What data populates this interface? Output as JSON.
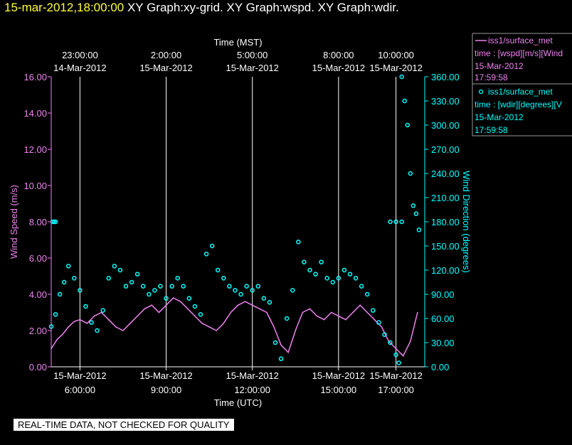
{
  "header": {
    "timestamp": "15-mar-2012,18:00:00",
    "graphs": "XY Graph:xy-grid.  XY Graph:wspd.  XY Graph:wdir."
  },
  "colors": {
    "wspd": "#ee82ee",
    "wdir": "#00ffff",
    "grid": "#ffffff",
    "timestamp": "#ffff33"
  },
  "legend": {
    "wspd": {
      "line1": "iss1/surface_met",
      "line2": "time : [wspd][m/s][Wind",
      "line3": "15-Mar-2012",
      "line4": "17:59:58",
      "marker": "line"
    },
    "wdir": {
      "line1": "iss1/surface_met",
      "line2": "time : [wdir][degrees][V",
      "line3": "15-Mar-2012",
      "line4": "17:59:58",
      "marker": "circle"
    }
  },
  "notice": "REAL-TIME DATA, NOT CHECKED FOR QUALITY",
  "chart_data": {
    "type": "line",
    "x_unit": "hours UTC, 15-Mar-2012",
    "xlim": [
      5.0,
      18.0
    ],
    "top_axis": {
      "label": "Time (MST)",
      "ticks": [
        {
          "x": 6,
          "time": "23:00:00",
          "date": "14-Mar-2012"
        },
        {
          "x": 9,
          "time": "2:00:00",
          "date": "15-Mar-2012"
        },
        {
          "x": 12,
          "time": "5:00:00",
          "date": "15-Mar-2012"
        },
        {
          "x": 15,
          "time": "8:00:00",
          "date": "15-Mar-2012"
        },
        {
          "x": 17,
          "time": "10:00:00",
          "date": "15-Mar-2012"
        }
      ]
    },
    "bottom_axis": {
      "label": "Time (UTC)",
      "ticks": [
        {
          "x": 6,
          "date": "15-Mar-2012",
          "time": "6:00:00"
        },
        {
          "x": 9,
          "date": "15-Mar-2012",
          "time": "9:00:00"
        },
        {
          "x": 12,
          "date": "15-Mar-2012",
          "time": "12:00:00"
        },
        {
          "x": 15,
          "date": "15-Mar-2012",
          "time": "15:00:00"
        },
        {
          "x": 17,
          "date": "15-Mar-2012",
          "time": "17:00:00"
        }
      ]
    },
    "y_left": {
      "label": "Wind Speed (m/s)",
      "ylim": [
        0,
        16
      ],
      "ticks": [
        "0.00",
        "2.00",
        "4.00",
        "6.00",
        "8.00",
        "10.00",
        "12.00",
        "14.00",
        "16.00"
      ]
    },
    "y_right": {
      "label": "Wind Direction (degrees)",
      "ylim": [
        0,
        360
      ],
      "ticks": [
        "0.00",
        "30.00",
        "60.00",
        "90.00",
        "120.00",
        "150.00",
        "180.00",
        "210.00",
        "240.00",
        "270.00",
        "300.00",
        "330.00",
        "360.00"
      ]
    },
    "grid": "vertical lines at labeled x ticks",
    "series": [
      {
        "name": "iss1/surface_met time : [wspd][m/s][Wind",
        "axis": "left",
        "style": "line",
        "x": [
          5.0,
          5.2,
          5.4,
          5.6,
          5.8,
          6.0,
          6.25,
          6.5,
          6.75,
          7.0,
          7.25,
          7.5,
          7.75,
          8.0,
          8.25,
          8.5,
          8.75,
          9.0,
          9.25,
          9.5,
          9.75,
          10.0,
          10.25,
          10.5,
          10.75,
          11.0,
          11.25,
          11.5,
          11.75,
          12.0,
          12.25,
          12.5,
          12.75,
          13.0,
          13.25,
          13.5,
          13.75,
          14.0,
          14.25,
          14.5,
          14.75,
          15.0,
          15.25,
          15.5,
          15.75,
          16.0,
          16.25,
          16.5,
          16.75,
          17.0,
          17.25,
          17.5,
          17.75
        ],
        "y": [
          1.0,
          1.5,
          1.8,
          2.2,
          2.5,
          2.6,
          2.4,
          2.8,
          3.0,
          2.6,
          2.2,
          2.0,
          2.4,
          2.8,
          3.2,
          3.4,
          3.0,
          3.4,
          3.8,
          3.6,
          3.2,
          2.8,
          2.4,
          2.2,
          2.0,
          2.4,
          3.0,
          3.4,
          3.6,
          3.4,
          3.2,
          3.0,
          2.2,
          1.2,
          0.8,
          2.0,
          3.0,
          3.2,
          2.8,
          2.6,
          3.0,
          2.8,
          2.6,
          3.0,
          3.4,
          3.0,
          2.6,
          2.2,
          1.4,
          1.0,
          0.6,
          1.4,
          3.0
        ]
      },
      {
        "name": "iss1/surface_met time : [wdir][degrees][V",
        "axis": "right",
        "style": "circles",
        "x": [
          5.0,
          5.15,
          5.3,
          5.45,
          5.6,
          5.8,
          6.0,
          6.2,
          6.4,
          6.6,
          6.8,
          7.0,
          7.2,
          7.4,
          7.6,
          7.8,
          8.0,
          8.2,
          8.4,
          8.6,
          8.8,
          9.0,
          9.2,
          9.4,
          9.6,
          9.8,
          10.0,
          10.2,
          10.4,
          10.6,
          10.8,
          11.0,
          11.2,
          11.4,
          11.6,
          11.8,
          12.0,
          12.2,
          12.4,
          12.6,
          12.8,
          13.0,
          13.2,
          13.4,
          13.6,
          13.8,
          14.0,
          14.2,
          14.4,
          14.6,
          14.8,
          15.0,
          15.2,
          15.4,
          15.6,
          15.8,
          16.0,
          16.2,
          16.4,
          16.6,
          16.8,
          17.0,
          17.1,
          17.2,
          17.3,
          17.4,
          17.5,
          17.6,
          17.7,
          17.8
        ],
        "y": [
          50,
          65,
          90,
          105,
          125,
          110,
          95,
          75,
          55,
          45,
          70,
          110,
          125,
          120,
          100,
          105,
          115,
          100,
          90,
          95,
          100,
          85,
          100,
          110,
          100,
          85,
          75,
          65,
          140,
          150,
          120,
          110,
          100,
          95,
          90,
          100,
          95,
          100,
          85,
          80,
          30,
          10,
          60,
          95,
          155,
          130,
          120,
          115,
          130,
          110,
          105,
          110,
          120,
          115,
          110,
          100,
          90,
          70,
          55,
          40,
          30,
          15,
          5,
          360,
          330,
          300,
          240,
          200,
          190,
          170
        ]
      },
      {
        "name": "",
        "axis": "right",
        "style": "circles",
        "x": [
          5.05,
          5.1,
          5.15
        ],
        "y": [
          180,
          180,
          180
        ]
      },
      {
        "name": "",
        "axis": "right",
        "style": "circles",
        "x": [
          16.8,
          17.0,
          17.2
        ],
        "y": [
          180,
          180,
          180
        ]
      }
    ]
  }
}
